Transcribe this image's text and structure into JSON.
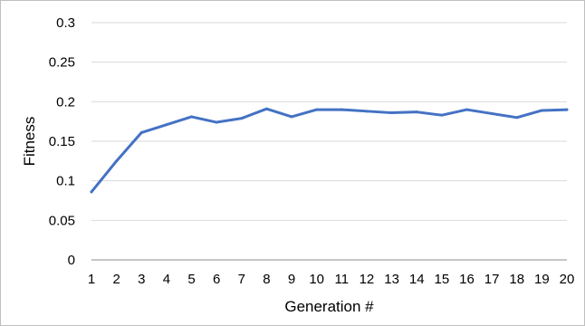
{
  "chart_data": {
    "type": "line",
    "xlabel": "Generation #",
    "ylabel": "Fitness",
    "ylim": [
      0,
      0.3
    ],
    "yticks": [
      0,
      0.05,
      0.1,
      0.15,
      0.2,
      0.25,
      0.3
    ],
    "ytick_labels": [
      "0",
      "0.05",
      "0.1",
      "0.15",
      "0.2",
      "0.25",
      "0.3"
    ],
    "x": [
      1,
      2,
      3,
      4,
      5,
      6,
      7,
      8,
      9,
      10,
      11,
      12,
      13,
      14,
      15,
      16,
      17,
      18,
      19,
      20
    ],
    "xtick_labels": [
      "1",
      "2",
      "3",
      "4",
      "5",
      "6",
      "7",
      "8",
      "9",
      "10",
      "11",
      "12",
      "13",
      "14",
      "15",
      "16",
      "17",
      "18",
      "19",
      "20"
    ],
    "series": [
      {
        "values": [
          0.086,
          0.125,
          0.161,
          0.171,
          0.181,
          0.174,
          0.179,
          0.191,
          0.181,
          0.19,
          0.19,
          0.188,
          0.186,
          0.187,
          0.183,
          0.19,
          0.185,
          0.18,
          0.189,
          0.19
        ],
        "color": "#4472c4"
      }
    ],
    "grid": "horizontal",
    "legend": "none"
  }
}
